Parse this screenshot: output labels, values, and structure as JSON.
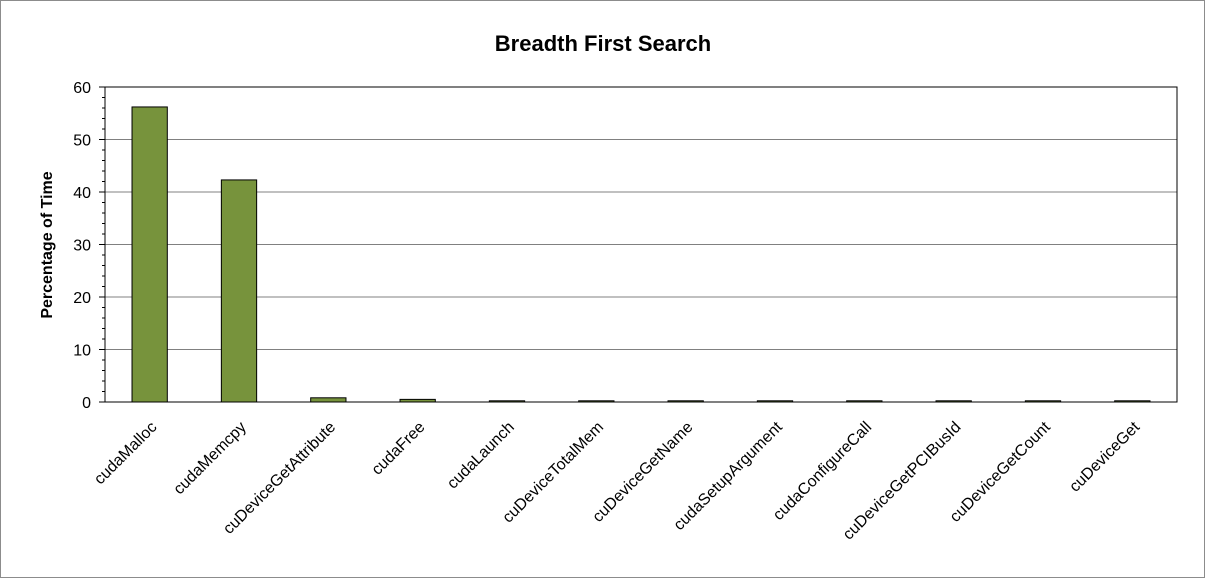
{
  "chart_data": {
    "type": "bar",
    "title": "Breadth First Search",
    "xlabel": "",
    "ylabel": "Percentage of Time",
    "ylim": [
      0,
      60
    ],
    "yticks": [
      0,
      10,
      20,
      30,
      40,
      50,
      60
    ],
    "grid": true,
    "legend": "none",
    "bar_color": "#77933c",
    "bar_border_color": "#000000",
    "categories": [
      "cudaMalloc",
      "cudaMemcpy",
      "cuDeviceGetAttribute",
      "cudaFree",
      "cudaLaunch",
      "cuDeviceTotalMem",
      "cuDeviceGetName",
      "cudaSetupArgument",
      "cudaConfigureCall",
      "cuDeviceGetPCIBusId",
      "cuDeviceGetCount",
      "cuDeviceGet"
    ],
    "values": [
      56.2,
      42.3,
      0.8,
      0.5,
      0.1,
      0.1,
      0.1,
      0.1,
      0.1,
      0.1,
      0.1,
      0.1
    ]
  }
}
